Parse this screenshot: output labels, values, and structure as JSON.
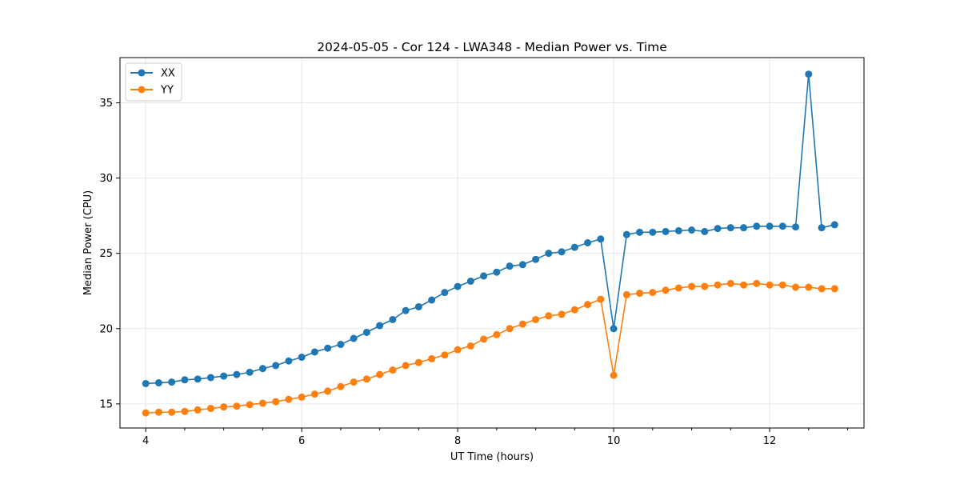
{
  "chart_data": {
    "type": "line",
    "title": "2024-05-05 - Cor 124 - LWA348 - Median Power vs. Time",
    "xlabel": "UT Time (hours)",
    "ylabel": "Median Power (CPU)",
    "xlim": [
      3.67,
      13.21
    ],
    "ylim": [
      13.4,
      38.0
    ],
    "xticks": [
      4,
      6,
      8,
      10,
      12
    ],
    "yticks": [
      15,
      20,
      25,
      30,
      35
    ],
    "x_minor_step": 0.5,
    "grid": true,
    "legend_position": "top-left",
    "x": [
      4.0,
      4.1667,
      4.3333,
      4.5,
      4.6667,
      4.8333,
      5.0,
      5.1667,
      5.3333,
      5.5,
      5.6667,
      5.8333,
      6.0,
      6.1667,
      6.3333,
      6.5,
      6.6667,
      6.8333,
      7.0,
      7.1667,
      7.3333,
      7.5,
      7.6667,
      7.8333,
      8.0,
      8.1667,
      8.3333,
      8.5,
      8.6667,
      8.8333,
      9.0,
      9.1667,
      9.3333,
      9.5,
      9.6667,
      9.8333,
      10.0,
      10.1667,
      10.3333,
      10.5,
      10.6667,
      10.8333,
      11.0,
      11.1667,
      11.3333,
      11.5,
      11.6667,
      11.8333,
      12.0,
      12.1667,
      12.3333,
      12.5,
      12.6667,
      12.8333
    ],
    "series": [
      {
        "name": "XX",
        "color": "#1f77b4",
        "values": [
          16.35,
          16.4,
          16.45,
          16.6,
          16.65,
          16.75,
          16.85,
          16.95,
          17.1,
          17.35,
          17.55,
          17.85,
          18.1,
          18.45,
          18.7,
          18.95,
          19.35,
          19.75,
          20.2,
          20.6,
          21.2,
          21.45,
          21.9,
          22.4,
          22.8,
          23.15,
          23.5,
          23.75,
          24.15,
          24.25,
          24.6,
          25.0,
          25.1,
          25.4,
          25.7,
          25.95,
          20.0,
          26.25,
          26.4,
          26.4,
          26.45,
          26.5,
          26.55,
          26.45,
          26.65,
          26.7,
          26.7,
          26.8,
          26.8,
          26.8,
          26.75,
          36.9,
          26.7,
          26.9
        ]
      },
      {
        "name": "YY",
        "color": "#ff7f0e",
        "values": [
          14.4,
          14.45,
          14.45,
          14.5,
          14.6,
          14.7,
          14.8,
          14.85,
          14.95,
          15.05,
          15.15,
          15.3,
          15.45,
          15.65,
          15.85,
          16.15,
          16.45,
          16.65,
          16.95,
          17.25,
          17.55,
          17.75,
          18.0,
          18.25,
          18.6,
          18.85,
          19.3,
          19.6,
          20.0,
          20.3,
          20.6,
          20.85,
          20.95,
          21.25,
          21.6,
          21.95,
          16.9,
          22.25,
          22.35,
          22.4,
          22.55,
          22.7,
          22.8,
          22.8,
          22.9,
          23.0,
          22.9,
          23.0,
          22.9,
          22.9,
          22.75,
          22.75,
          22.65,
          22.65
        ]
      }
    ]
  }
}
